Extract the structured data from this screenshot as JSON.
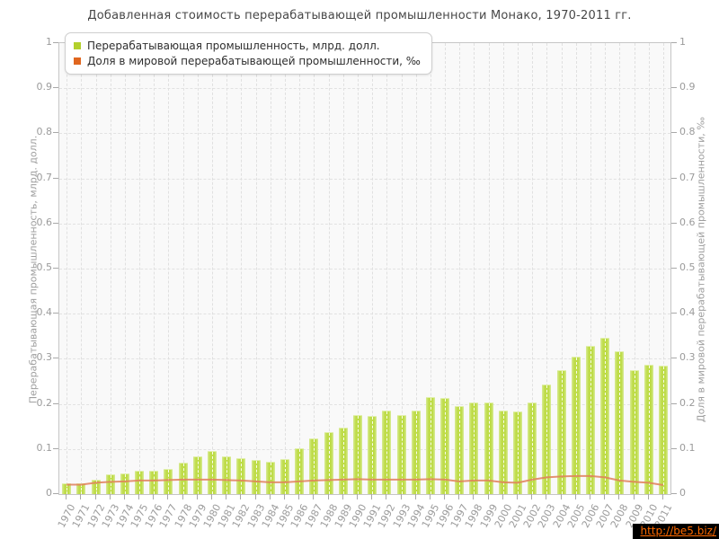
{
  "title": "Добавленная стоимость перерабатывающей промышленности Монако, 1970-2011 гг.",
  "legend": {
    "items": [
      {
        "label": "Перерабатывающая промышленность, млрд. долл.",
        "swatch_color": "#b3d02c"
      },
      {
        "label": "Доля в мировой перерабатывающей промышленности, ‰",
        "swatch_color": "#e0661f"
      }
    ]
  },
  "watermark": {
    "text": "http://be5.biz/",
    "text_color": "#ff6a00",
    "bg_color": "#000000"
  },
  "chart_data": {
    "type": "bar",
    "title": "Добавленная стоимость перерабатывающей промышленности Монако, 1970-2011 гг.",
    "categories": [
      1970,
      1971,
      1972,
      1973,
      1974,
      1975,
      1976,
      1977,
      1978,
      1979,
      1980,
      1981,
      1982,
      1983,
      1984,
      1985,
      1986,
      1987,
      1988,
      1989,
      1990,
      1991,
      1992,
      1993,
      1994,
      1995,
      1996,
      1997,
      1998,
      1999,
      2000,
      2001,
      2002,
      2003,
      2004,
      2005,
      2006,
      2007,
      2008,
      2009,
      2010,
      2011
    ],
    "series": [
      {
        "name": "Перерабатывающая промышленность, млрд. долл.",
        "type": "bar",
        "axis": "left",
        "color": "#bcdb43",
        "values": [
          0.021,
          0.021,
          0.03,
          0.041,
          0.044,
          0.049,
          0.05,
          0.053,
          0.067,
          0.081,
          0.093,
          0.082,
          0.078,
          0.073,
          0.069,
          0.075,
          0.1,
          0.122,
          0.135,
          0.145,
          0.174,
          0.172,
          0.183,
          0.173,
          0.183,
          0.213,
          0.212,
          0.193,
          0.201,
          0.201,
          0.183,
          0.182,
          0.201,
          0.242,
          0.272,
          0.303,
          0.327,
          0.345,
          0.315,
          0.272,
          0.284,
          0.283
        ]
      },
      {
        "name": "Доля в мировой перерабатывающей промышленности, ‰",
        "type": "line",
        "axis": "right",
        "color": "#e0805a",
        "values": [
          0.021,
          0.021,
          0.025,
          0.027,
          0.028,
          0.03,
          0.03,
          0.031,
          0.032,
          0.032,
          0.032,
          0.031,
          0.03,
          0.028,
          0.026,
          0.026,
          0.028,
          0.03,
          0.031,
          0.032,
          0.033,
          0.032,
          0.032,
          0.032,
          0.032,
          0.033,
          0.032,
          0.028,
          0.03,
          0.03,
          0.026,
          0.025,
          0.032,
          0.037,
          0.039,
          0.04,
          0.04,
          0.037,
          0.03,
          0.027,
          0.025,
          0.02
        ]
      }
    ],
    "ylabel_left": "Перерабатывающая промышленность, млрд. долл.",
    "ylabel_right": "Доля в мировой перерабатывающей промышленности, ‰",
    "ylim": [
      0,
      1
    ],
    "yticks": [
      "0",
      "0.1",
      "0.2",
      "0.3",
      "0.4",
      "0.5",
      "0.6",
      "0.7",
      "0.8",
      "0.9",
      "1"
    ],
    "grid": "dashed",
    "legend_position": "top-left"
  }
}
